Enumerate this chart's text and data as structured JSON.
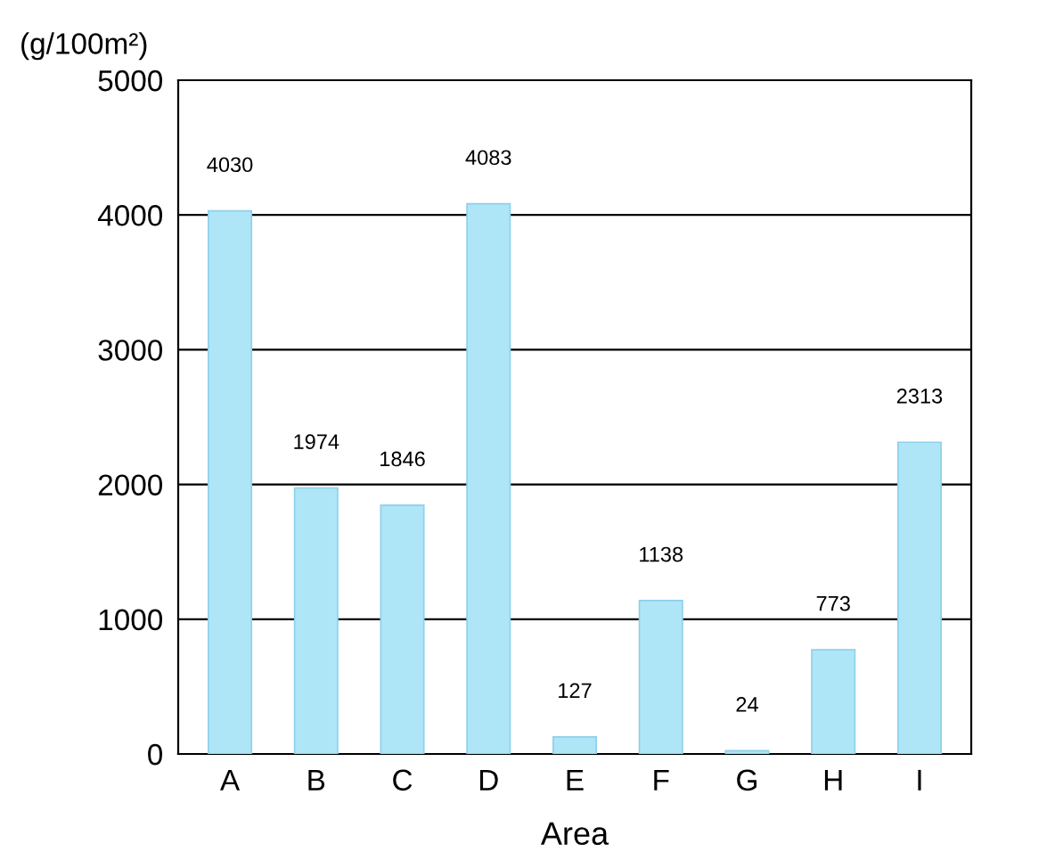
{
  "chart_data": {
    "type": "bar",
    "xlabel": "Area",
    "ylabel": "(g/100m²)",
    "categories": [
      "A",
      "B",
      "C",
      "D",
      "E",
      "F",
      "G",
      "H",
      "I"
    ],
    "values": [
      4030,
      1974,
      1846,
      4083,
      127,
      1138,
      24,
      773,
      2313
    ],
    "color": "#aee6f8",
    "ylim": [
      0,
      5000
    ],
    "yticks": [
      0,
      1000,
      2000,
      3000,
      4000,
      5000
    ],
    "grid": "y",
    "data_labels": true
  }
}
